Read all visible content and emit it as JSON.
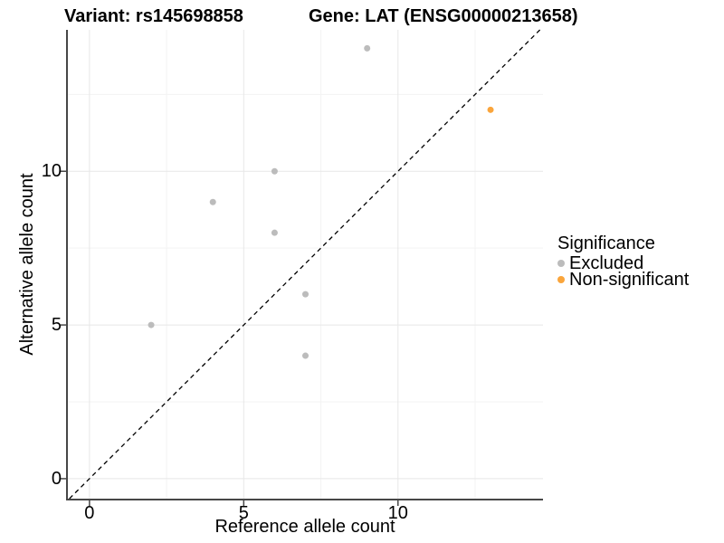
{
  "header": {
    "variant_title": "Variant: rs145698858",
    "gene_title": "Gene: LAT (ENSG00000213658)"
  },
  "chart_data": {
    "type": "scatter",
    "xlabel": "Reference allele count",
    "ylabel": "Alternative allele count",
    "xlim": [
      -0.7,
      14.7
    ],
    "ylim": [
      -0.65,
      14.6
    ],
    "x_ticks": [
      0,
      5,
      10
    ],
    "y_ticks": [
      0,
      5,
      10
    ],
    "minor_ticks": [
      2.5,
      7.5,
      12.5
    ],
    "grid": true,
    "legend_title": "Significance",
    "legend_position": "right",
    "identity_line": {
      "slope": 1,
      "intercept": 0,
      "style": "dashed",
      "color": "#000000"
    },
    "series": [
      {
        "name": "Excluded",
        "color": "#BCBCBC",
        "points": [
          [
            9,
            14
          ],
          [
            6,
            10
          ],
          [
            4,
            9
          ],
          [
            6,
            8
          ],
          [
            7,
            6
          ],
          [
            2,
            5
          ],
          [
            7,
            4
          ]
        ]
      },
      {
        "name": "Non-significant",
        "color": "#FAA53C",
        "points": [
          [
            13,
            12
          ]
        ]
      }
    ],
    "colors": {
      "grid_major": "#E7E7E7",
      "grid_minor": "#F3F3F3",
      "axis_line": "#474747",
      "tick_mark": "#474747",
      "text": "#000000"
    }
  }
}
